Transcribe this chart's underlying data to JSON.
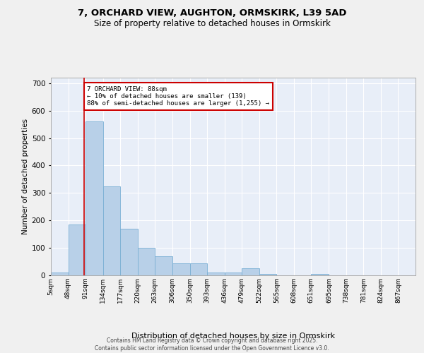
{
  "title_line1": "7, ORCHARD VIEW, AUGHTON, ORMSKIRK, L39 5AD",
  "title_line2": "Size of property relative to detached houses in Ormskirk",
  "xlabel": "Distribution of detached houses by size in Ormskirk",
  "ylabel": "Number of detached properties",
  "bar_edges": [
    5,
    48,
    91,
    134,
    177,
    220,
    263,
    306,
    350,
    393,
    436,
    479,
    522,
    565,
    608,
    651,
    695,
    738,
    781,
    824,
    867
  ],
  "bar_heights": [
    10,
    185,
    560,
    325,
    170,
    100,
    70,
    45,
    45,
    10,
    10,
    25,
    5,
    0,
    0,
    5,
    0,
    0,
    0,
    0,
    0
  ],
  "bar_color": "#b8d0e8",
  "bar_edge_color": "#7aafd4",
  "bg_color": "#e8eef8",
  "grid_color": "#ffffff",
  "fig_bg_color": "#f0f0f0",
  "property_line_x": 88,
  "property_line_color": "#cc0000",
  "annotation_text": "7 ORCHARD VIEW: 88sqm\n← 10% of detached houses are smaller (139)\n88% of semi-detached houses are larger (1,255) →",
  "annotation_box_color": "#cc0000",
  "ylim": [
    0,
    720
  ],
  "yticks": [
    0,
    100,
    200,
    300,
    400,
    500,
    600,
    700
  ],
  "xlim_left": 5,
  "xlim_right": 910,
  "footer_line1": "Contains HM Land Registry data © Crown copyright and database right 2025.",
  "footer_line2": "Contains public sector information licensed under the Open Government Licence v3.0."
}
